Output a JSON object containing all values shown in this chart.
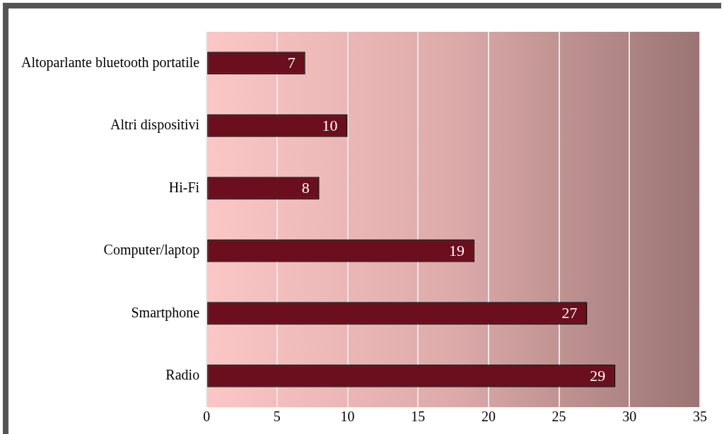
{
  "chart_data": {
    "type": "bar",
    "orientation": "horizontal",
    "categories": [
      "Altoparlante bluetooth portatile",
      "Altri dispositivi",
      "Hi-Fi",
      "Computer/laptop",
      "Smartphone",
      "Radio"
    ],
    "values": [
      7,
      10,
      8,
      19,
      27,
      29
    ],
    "color": "#6b0e1e",
    "xlim": [
      0,
      35
    ],
    "xticks": [
      0,
      5,
      10,
      15,
      20,
      25,
      30,
      35
    ],
    "grid": "x",
    "data_labels": true,
    "legend": false
  }
}
